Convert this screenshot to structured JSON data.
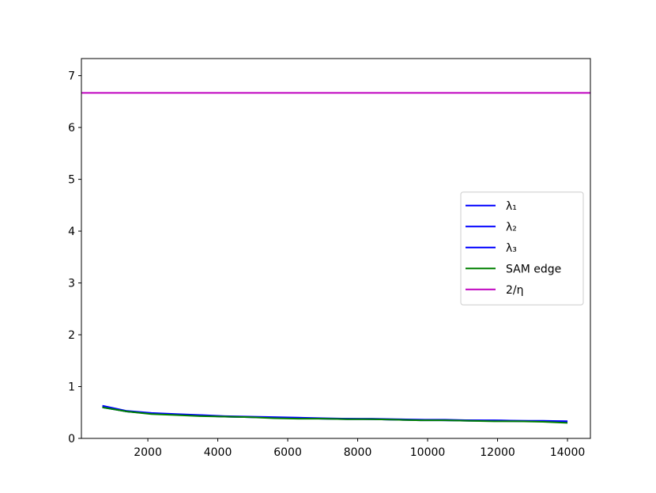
{
  "chart_data": {
    "type": "line",
    "x": [
      700,
      1400,
      2100,
      2800,
      3500,
      4200,
      4900,
      5600,
      6300,
      7000,
      7700,
      8400,
      9100,
      9800,
      10500,
      11200,
      11900,
      12600,
      13300,
      14000
    ],
    "series": [
      {
        "name": "λ₁",
        "color": "#0000ff",
        "values": [
          0.63,
          0.53,
          0.49,
          0.47,
          0.45,
          0.43,
          0.42,
          0.41,
          0.4,
          0.39,
          0.38,
          0.38,
          0.37,
          0.36,
          0.36,
          0.35,
          0.35,
          0.34,
          0.34,
          0.33
        ]
      },
      {
        "name": "λ₂",
        "color": "#0000ff",
        "values": [
          0.61,
          0.52,
          0.48,
          0.46,
          0.44,
          0.42,
          0.41,
          0.4,
          0.39,
          0.38,
          0.38,
          0.37,
          0.36,
          0.36,
          0.35,
          0.35,
          0.34,
          0.34,
          0.33,
          0.33
        ]
      },
      {
        "name": "λ₃",
        "color": "#0000ff",
        "values": [
          0.6,
          0.52,
          0.48,
          0.46,
          0.44,
          0.42,
          0.41,
          0.4,
          0.39,
          0.38,
          0.37,
          0.37,
          0.36,
          0.35,
          0.35,
          0.34,
          0.34,
          0.33,
          0.33,
          0.32
        ]
      },
      {
        "name": "SAM edge",
        "color": "#008000",
        "values": [
          0.6,
          0.52,
          0.47,
          0.45,
          0.43,
          0.42,
          0.41,
          0.39,
          0.38,
          0.38,
          0.37,
          0.37,
          0.36,
          0.35,
          0.35,
          0.34,
          0.33,
          0.33,
          0.32,
          0.3
        ]
      }
    ],
    "hline": {
      "name": "2/η",
      "color": "#bf00bf",
      "value": 6.667
    },
    "xlim": [
      100,
      14655
    ],
    "ylim": [
      0,
      7.33
    ],
    "xticks": [
      2000,
      4000,
      6000,
      8000,
      10000,
      12000,
      14000
    ],
    "yticks": [
      0,
      1,
      2,
      3,
      4,
      5,
      6,
      7
    ],
    "legend": "center right"
  }
}
